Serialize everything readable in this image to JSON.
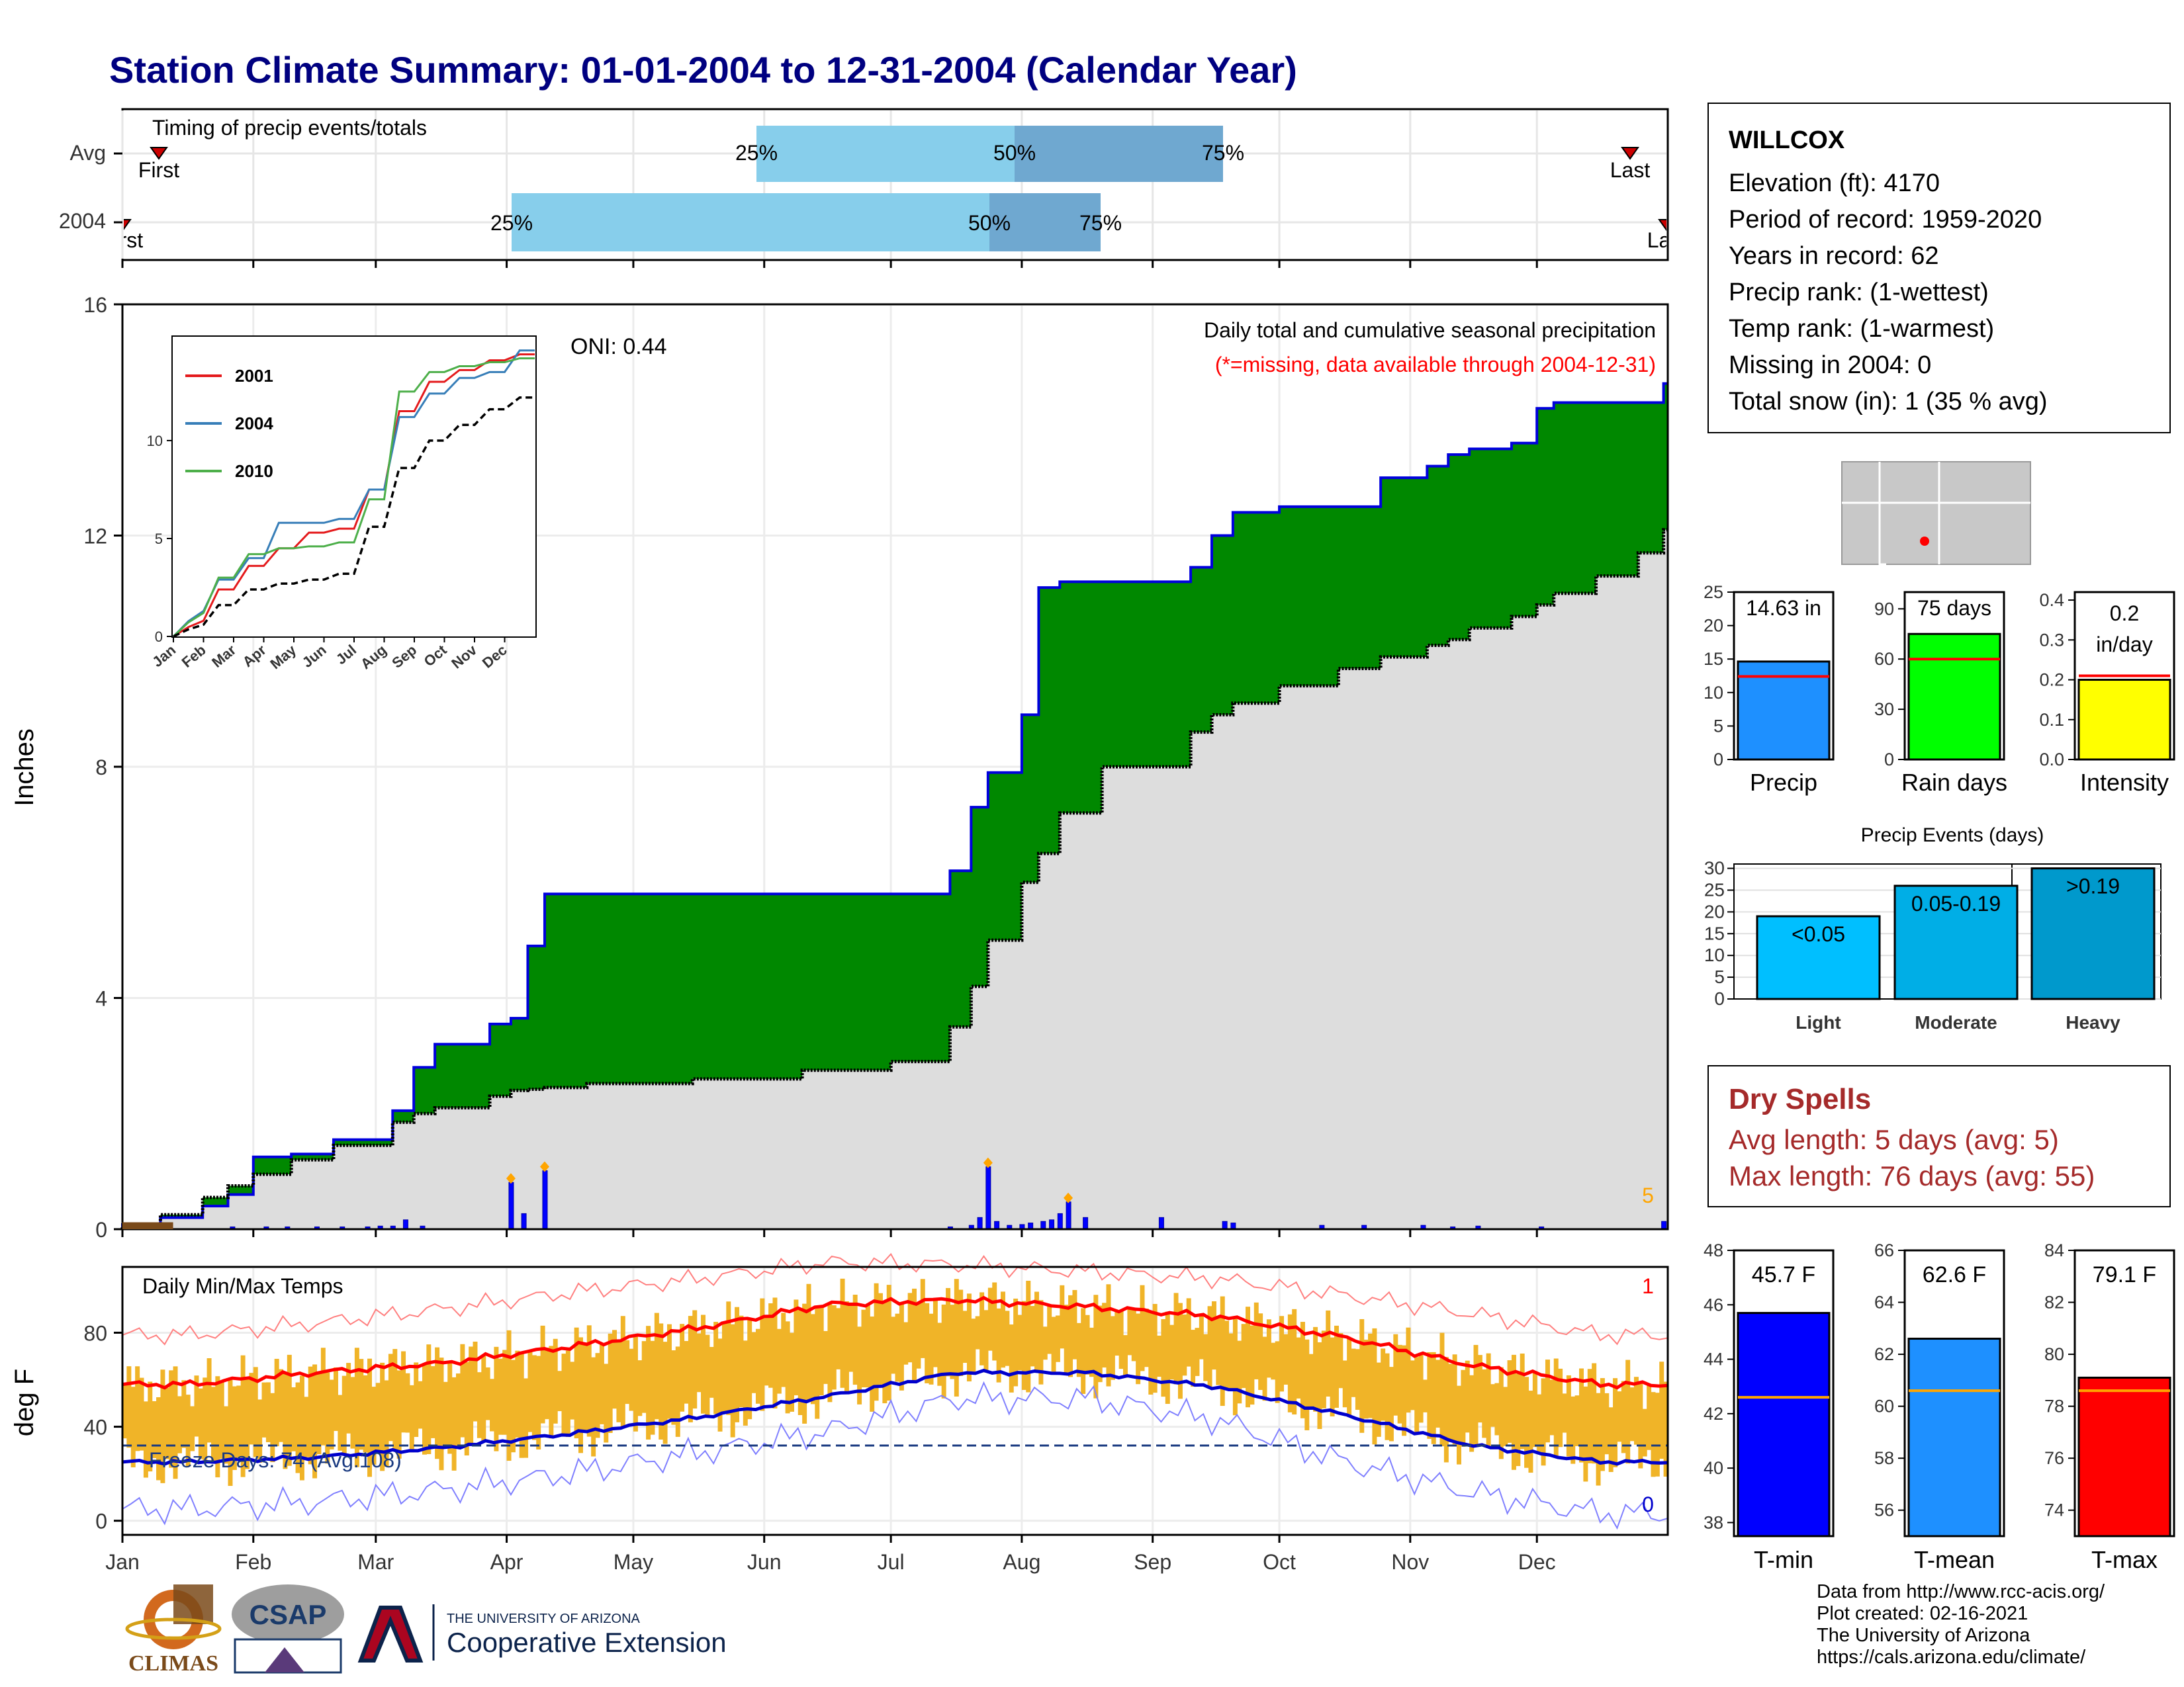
{
  "title": "Station Climate Summary: 01-01-2004 to 12-31-2004 (Calendar Year)",
  "station": {
    "name": "WILLCOX",
    "lines": [
      "Elevation (ft): 4170",
      "Period of record: 1959-2020",
      "Years in record: 62",
      "Precip rank:  (1-wettest)",
      "Temp rank:  (1-warmest)",
      "Missing in 2004: 0",
      "Total snow (in): 1 (35 % avg)"
    ]
  },
  "timing_panel": {
    "label": "Timing of precip events/totals",
    "rows": [
      {
        "name": "Avg",
        "first_label": "First",
        "last_label": "Last"
      },
      {
        "name": "2004",
        "first_label": "First",
        "last_label": "Last"
      }
    ],
    "pct_labels": [
      "25%",
      "50%",
      "75%"
    ]
  },
  "precip_panel": {
    "ylabel": "Inches",
    "oni": "ONI: 0.44",
    "note1": "Daily total and cumulative seasonal precipitation",
    "note2": "(*=missing, data available through 2004-12-31)",
    "count_label": "5"
  },
  "temp_panel": {
    "label": "Daily Min/Max Temps",
    "ylabel": "deg F",
    "freeze": "Freeze Days: 74 (Avg:108)",
    "hi_count": "1",
    "lo_count": "0"
  },
  "months": [
    "Jan",
    "Feb",
    "Mar",
    "Apr",
    "May",
    "Jun",
    "Jul",
    "Aug",
    "Sep",
    "Oct",
    "Nov",
    "Dec"
  ],
  "inset": {
    "legend": [
      "2001",
      "2004",
      "2010"
    ],
    "colors": [
      "#e41a1c",
      "#377eb8",
      "#4daf4a"
    ]
  },
  "bars_titles": {
    "precip": "14.63 in",
    "raindays": "75 days",
    "intensity_l1": "0.2",
    "intensity_l2": "in/day",
    "precip_label": "Precip",
    "raindays_label": "Rain days",
    "intensity_label": "Intensity"
  },
  "events": {
    "title": "Precip Events (days)",
    "cats": [
      "Light",
      "Moderate",
      "Heavy"
    ],
    "labels": [
      "<0.05",
      "0.05-0.19",
      ">0.19"
    ]
  },
  "temps_bars": {
    "labels": [
      "T-min",
      "T-mean",
      "T-max"
    ],
    "values_txt": [
      "45.7 F",
      "62.6 F",
      "79.1 F"
    ]
  },
  "dry_spells": {
    "heading": "Dry Spells",
    "avg": "Avg length: 5 days (avg: 5)",
    "max": "Max length: 76 days (avg: 55)"
  },
  "credits": [
    "Data from http://www.rcc-acis.org/",
    "Plot created: 02-16-2021",
    "The University of Arizona",
    "https://cals.arizona.edu/climate/"
  ],
  "logos": {
    "climas": "CLIMAS",
    "csap": "CSAP",
    "ua_small": "THE UNIVERSITY OF ARIZONA",
    "ua_big": "Cooperative Extension"
  },
  "chart_data": [
    {
      "type": "bar",
      "title": "Timing of precip events/totals",
      "categories": [
        "Avg",
        "2004"
      ],
      "series": [
        {
          "name": "First",
          "values": [
            "Jan 11",
            "Jan 1"
          ]
        },
        {
          "name": "25%",
          "values": [
            "Jun 1",
            "Mar 1"
          ]
        },
        {
          "name": "50%",
          "values": [
            "Aug 1",
            "Jul 23"
          ]
        },
        {
          "name": "75%",
          "values": [
            "Sep 18",
            "Aug 15"
          ]
        },
        {
          "name": "Last",
          "values": [
            "Dec 25",
            "Dec 31"
          ]
        }
      ]
    },
    {
      "type": "area",
      "title": "Daily total and cumulative seasonal precipitation",
      "ylabel": "Inches",
      "ylim": [
        0,
        16
      ],
      "x": [
        "2004-01-01",
        "2004-01-10",
        "2004-01-20",
        "2004-01-26",
        "2004-02-01",
        "2004-02-10",
        "2004-02-20",
        "2004-03-05",
        "2004-03-10",
        "2004-03-15",
        "2004-03-28",
        "2004-04-02",
        "2004-04-06",
        "2004-04-10",
        "2004-04-20",
        "2004-05-15",
        "2004-06-10",
        "2004-07-01",
        "2004-07-15",
        "2004-07-20",
        "2004-07-24",
        "2004-08-01",
        "2004-08-05",
        "2004-08-10",
        "2004-08-20",
        "2004-09-10",
        "2004-09-15",
        "2004-09-20",
        "2004-10-01",
        "2004-10-15",
        "2004-10-25",
        "2004-11-05",
        "2004-11-10",
        "2004-11-15",
        "2004-11-25",
        "2004-12-01",
        "2004-12-05",
        "2004-12-15",
        "2004-12-25",
        "2004-12-31"
      ],
      "series": [
        {
          "name": "2004 cumulative",
          "values": [
            0.08,
            0.2,
            0.4,
            0.6,
            1.25,
            1.3,
            1.55,
            2.05,
            2.8,
            3.2,
            3.55,
            3.65,
            4.9,
            5.8,
            5.8,
            5.8,
            5.8,
            5.8,
            6.2,
            7.3,
            7.9,
            8.9,
            11.1,
            11.2,
            11.2,
            11.45,
            12.0,
            12.4,
            12.5,
            12.5,
            13.0,
            13.2,
            13.4,
            13.5,
            13.6,
            14.2,
            14.3,
            14.3,
            14.3,
            14.63
          ]
        },
        {
          "name": "average cumulative",
          "values": [
            0.05,
            0.25,
            0.55,
            0.75,
            0.95,
            1.2,
            1.45,
            1.85,
            2.0,
            2.1,
            2.3,
            2.4,
            2.42,
            2.45,
            2.52,
            2.6,
            2.75,
            2.9,
            3.5,
            4.2,
            5.0,
            6.0,
            6.5,
            7.2,
            8.0,
            8.6,
            8.9,
            9.1,
            9.4,
            9.7,
            9.9,
            10.1,
            10.2,
            10.4,
            10.6,
            10.8,
            11.0,
            11.3,
            11.7,
            12.1
          ]
        }
      ],
      "daily_values": {
        "x": [
          "2004-01-05",
          "2004-01-09",
          "2004-01-12",
          "2004-01-27",
          "2004-02-04",
          "2004-02-09",
          "2004-02-16",
          "2004-02-22",
          "2004-02-28",
          "2004-03-02",
          "2004-03-05",
          "2004-03-08",
          "2004-03-12",
          "2004-04-02",
          "2004-04-05",
          "2004-04-10",
          "2004-07-15",
          "2004-07-20",
          "2004-07-22",
          "2004-07-24",
          "2004-07-26",
          "2004-07-29",
          "2004-08-01",
          "2004-08-03",
          "2004-08-06",
          "2004-08-08",
          "2004-08-10",
          "2004-08-12",
          "2004-08-16",
          "2004-09-03",
          "2004-09-18",
          "2004-09-20",
          "2004-10-11",
          "2004-10-21",
          "2004-11-04",
          "2004-11-11",
          "2004-11-17",
          "2004-12-02",
          "2004-12-31"
        ],
        "values": [
          0.05,
          0.04,
          0.03,
          0.03,
          0.03,
          0.03,
          0.03,
          0.03,
          0.03,
          0.04,
          0.04,
          0.12,
          0.04,
          0.6,
          0.2,
          0.75,
          0.03,
          0.05,
          0.15,
          0.8,
          0.1,
          0.05,
          0.06,
          0.08,
          0.1,
          0.12,
          0.2,
          0.35,
          0.15,
          0.15,
          0.1,
          0.08,
          0.05,
          0.05,
          0.05,
          0.03,
          0.04,
          0.03,
          0.1
        ]
      }
    },
    {
      "type": "line",
      "title": "ONI: 0.44",
      "categories": [
        "Jan",
        "Feb",
        "Mar",
        "Apr",
        "May",
        "Jun",
        "Jul",
        "Aug",
        "Sep",
        "Oct",
        "Nov",
        "Dec"
      ],
      "ylim": [
        0,
        15
      ],
      "series": [
        {
          "name": "2001",
          "values": [
            0.8,
            2.4,
            3.6,
            4.5,
            5.3,
            5.5,
            7.5,
            11.5,
            13.0,
            13.6,
            14.1,
            14.4
          ]
        },
        {
          "name": "2004",
          "values": [
            1.3,
            2.9,
            4.0,
            5.8,
            5.8,
            6.0,
            7.5,
            11.2,
            12.4,
            13.2,
            13.5,
            14.6
          ]
        },
        {
          "name": "2010",
          "values": [
            1.2,
            3.0,
            4.2,
            4.5,
            4.6,
            4.8,
            7.0,
            12.5,
            13.5,
            13.8,
            14.0,
            14.2
          ]
        },
        {
          "name": "average",
          "values": [
            0.6,
            1.6,
            2.4,
            2.7,
            2.9,
            3.2,
            5.6,
            8.6,
            10.0,
            10.8,
            11.6,
            12.2
          ]
        }
      ]
    },
    {
      "type": "line",
      "title": "Daily Min/Max Temps",
      "ylabel": "deg F",
      "categories": [
        "Jan",
        "Feb",
        "Mar",
        "Apr",
        "May",
        "Jun",
        "Jul",
        "Aug",
        "Sep",
        "Oct",
        "Nov",
        "Dec"
      ],
      "ylim": [
        -5,
        105
      ],
      "series": [
        {
          "name": "avg max",
          "values": [
            58,
            63,
            67,
            74,
            82,
            92,
            94,
            91,
            87,
            78,
            66,
            58
          ]
        },
        {
          "name": "avg min",
          "values": [
            25,
            27,
            31,
            37,
            44,
            53,
            63,
            63,
            57,
            45,
            32,
            25
          ]
        },
        {
          "name": "record max",
          "values": [
            79,
            84,
            90,
            97,
            103,
            110,
            109,
            106,
            103,
            96,
            88,
            79
          ]
        },
        {
          "name": "record min",
          "values": [
            5,
            8,
            13,
            20,
            29,
            38,
            52,
            52,
            43,
            25,
            12,
            3
          ]
        }
      ],
      "freeze_threshold": 32
    },
    {
      "type": "bar",
      "categories": [
        "Precip",
        "Rain days",
        "Intensity"
      ],
      "values": [
        14.63,
        75,
        0.2
      ],
      "averages": [
        12.4,
        60,
        0.21
      ],
      "ylims": [
        [
          0,
          25
        ],
        [
          0,
          100
        ],
        [
          0,
          0.42
        ]
      ]
    },
    {
      "type": "bar",
      "title": "Precip Events (days)",
      "categories": [
        "Light",
        "Moderate",
        "Heavy"
      ],
      "values": [
        19,
        26,
        30
      ],
      "ylim": [
        0,
        31
      ]
    },
    {
      "type": "bar",
      "categories": [
        "T-min",
        "T-mean",
        "T-max"
      ],
      "values": [
        45.7,
        62.6,
        79.1
      ],
      "averages": [
        42.6,
        60.6,
        78.6
      ],
      "ylims": [
        [
          37.5,
          48
        ],
        [
          55,
          66
        ],
        [
          73,
          84
        ]
      ]
    }
  ],
  "colors": {
    "title": "#000080",
    "accum": "#008800",
    "line_blue": "#0000dd",
    "avg_fill": "#dddddd",
    "timing_light": "#87ceeb",
    "timing_dark": "#6fa8d0",
    "temp_bar": "#f0b428",
    "red": "#ff0000",
    "precip_bar": "#1e90ff",
    "rain_bar": "#00ff00",
    "int_bar": "#ffff00",
    "ev1": "#00bfff",
    "ev2": "#00aee6",
    "ev3": "#0099cc",
    "tmin": "#0000ff",
    "tmean": "#1e90ff",
    "tmax": "#ff0000",
    "dry": "#a52a2a"
  }
}
